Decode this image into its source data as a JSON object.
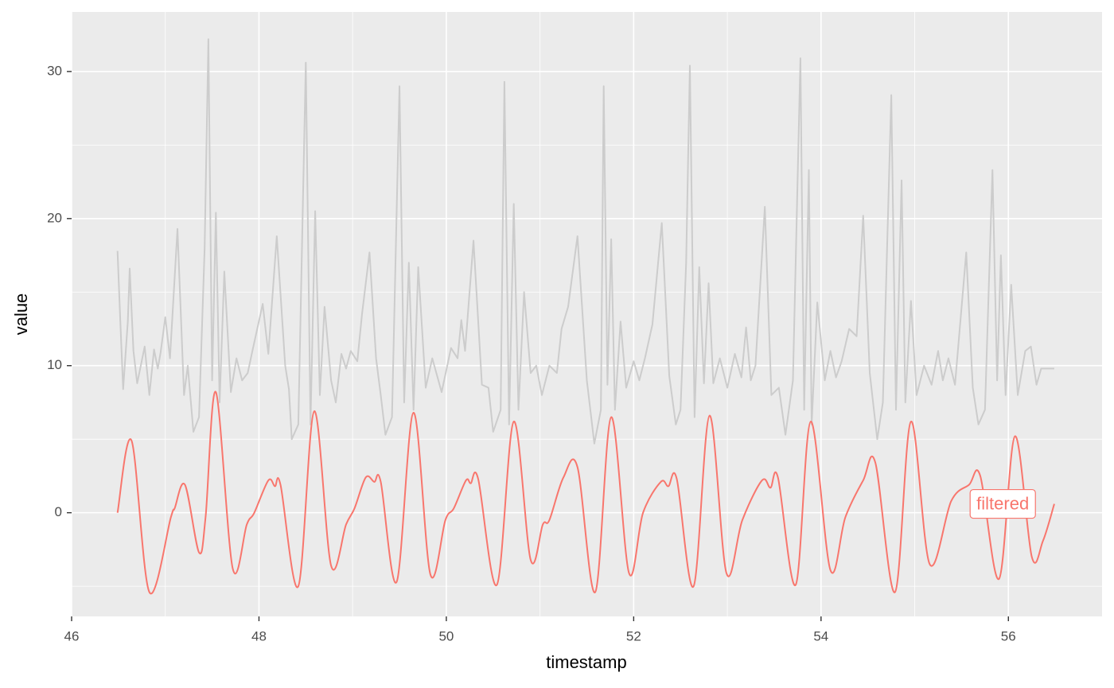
{
  "chart_data": {
    "type": "line",
    "x_label": "timestamp",
    "y_label": "value",
    "xlim": [
      46,
      57
    ],
    "ylim": [
      -7.05,
      34.05
    ],
    "xticks": [
      46,
      48,
      50,
      52,
      54,
      56
    ],
    "yticks": [
      0,
      10,
      20,
      30
    ],
    "x_minor_grid": [
      47,
      49,
      51,
      53,
      55
    ],
    "y_minor_grid": [
      -5,
      5,
      15,
      25
    ],
    "grid": true,
    "series": [
      {
        "color": "#cccccc",
        "x": [
          46.49,
          46.52,
          46.55,
          46.6,
          46.62,
          46.66,
          46.7,
          46.78,
          46.83,
          46.88,
          46.92,
          46.95,
          47.0,
          47.05,
          47.13,
          47.2,
          47.24,
          47.3,
          47.36,
          47.42,
          47.46,
          47.5,
          47.54,
          47.58,
          47.63,
          47.7,
          47.76,
          47.82,
          47.88,
          47.93,
          48.04,
          48.1,
          48.19,
          48.28,
          48.32,
          48.35,
          48.42,
          48.5,
          48.55,
          48.6,
          48.65,
          48.7,
          48.77,
          48.82,
          48.88,
          48.93,
          48.98,
          49.05,
          49.1,
          49.18,
          49.25,
          49.3,
          49.35,
          49.42,
          49.5,
          49.55,
          49.6,
          49.65,
          49.7,
          49.78,
          49.85,
          49.95,
          50.05,
          50.12,
          50.16,
          50.2,
          50.29,
          50.38,
          50.45,
          50.5,
          50.58,
          50.62,
          50.67,
          50.72,
          50.77,
          50.83,
          50.9,
          50.96,
          51.02,
          51.1,
          51.18,
          51.23,
          51.3,
          51.4,
          51.5,
          51.58,
          51.65,
          51.68,
          51.72,
          51.76,
          51.8,
          51.86,
          51.92,
          52.0,
          52.06,
          52.12,
          52.2,
          52.3,
          52.38,
          52.45,
          52.5,
          52.56,
          52.6,
          52.65,
          52.7,
          52.75,
          52.8,
          52.85,
          52.92,
          53.0,
          53.08,
          53.15,
          53.2,
          53.25,
          53.3,
          53.4,
          53.47,
          53.55,
          53.62,
          53.7,
          53.78,
          53.82,
          53.87,
          53.9,
          53.96,
          54.04,
          54.1,
          54.16,
          54.22,
          54.3,
          54.38,
          54.45,
          54.52,
          54.6,
          54.66,
          54.75,
          54.8,
          54.86,
          54.9,
          54.96,
          55.02,
          55.1,
          55.18,
          55.25,
          55.3,
          55.36,
          55.43,
          55.55,
          55.62,
          55.68,
          55.75,
          55.83,
          55.88,
          55.92,
          55.97,
          56.03,
          56.1,
          56.18,
          56.24,
          56.3,
          56.35,
          56.49
        ],
        "values": [
          17.8,
          13,
          8.4,
          13,
          16.6,
          11,
          8.8,
          11.3,
          8,
          11.1,
          9.8,
          10.9,
          13.3,
          10.5,
          19.3,
          8,
          10,
          5.5,
          6.5,
          18,
          32.2,
          9,
          20.4,
          7.5,
          16.4,
          8.2,
          10.5,
          9,
          9.5,
          11,
          14.2,
          10.8,
          18.8,
          10,
          8.4,
          5,
          6,
          30.6,
          6,
          20.5,
          8,
          14,
          9,
          7.5,
          10.8,
          9.8,
          11,
          10.3,
          13.5,
          17.7,
          10.5,
          8,
          5.3,
          6.5,
          29,
          7.5,
          17,
          7,
          16.7,
          8.5,
          10.5,
          8.2,
          11.2,
          10.5,
          13.1,
          11,
          18.5,
          8.7,
          8.5,
          5.5,
          7,
          29.3,
          6,
          21,
          7,
          15,
          9.5,
          10,
          8,
          10,
          9.5,
          12.5,
          14,
          18.8,
          9,
          4.7,
          7,
          29,
          8.7,
          18.6,
          7,
          13,
          8.5,
          10.3,
          9,
          10.5,
          12.8,
          19.7,
          9.3,
          6,
          7,
          17,
          30.4,
          6.5,
          16.7,
          8.8,
          15.6,
          8.8,
          10.5,
          8.5,
          10.8,
          9.2,
          12.6,
          9,
          10,
          20.8,
          8,
          8.5,
          5.3,
          9,
          30.9,
          7,
          23.3,
          6,
          14.3,
          9,
          11,
          9.2,
          10.3,
          12.5,
          12,
          20.2,
          9.5,
          5,
          7.5,
          28.4,
          7,
          22.6,
          7.5,
          14.4,
          8,
          10,
          8.7,
          11,
          9,
          10.5,
          8.7,
          17.7,
          8.5,
          6,
          7,
          23.3,
          9,
          17.5,
          8,
          15.5,
          8,
          11,
          11.3,
          8.7,
          9.8,
          9.8
        ]
      },
      {
        "name": "filtered",
        "color": "#f8766d",
        "label_at": [
          55.94,
          0.6
        ],
        "x": [
          46.49,
          46.64,
          46.83,
          47.06,
          47.1,
          47.21,
          47.36,
          47.43,
          47.54,
          47.72,
          47.87,
          47.95,
          48.1,
          48.17,
          48.23,
          48.42,
          48.59,
          48.77,
          48.93,
          49.02,
          49.14,
          49.23,
          49.3,
          49.47,
          49.65,
          49.83,
          49.99,
          50.08,
          50.21,
          50.26,
          50.34,
          50.54,
          50.72,
          50.9,
          51.03,
          51.1,
          51.25,
          51.4,
          51.59,
          51.76,
          51.95,
          52.1,
          52.29,
          52.37,
          52.46,
          52.64,
          52.81,
          52.99,
          53.16,
          53.37,
          53.46,
          53.54,
          53.73,
          53.89,
          54.1,
          54.26,
          54.45,
          54.58,
          54.79,
          54.96,
          55.16,
          55.39,
          55.58,
          55.7,
          55.9,
          56.07,
          56.25,
          56.37,
          56.49
        ],
        "values": [
          0,
          4.9,
          -5.4,
          -0.3,
          0.3,
          1.9,
          -2.7,
          -0.3,
          8.2,
          -3.8,
          -0.8,
          0,
          2.2,
          1.8,
          1.9,
          -5,
          6.9,
          -3.6,
          -0.8,
          0.3,
          2.4,
          2.1,
          2.1,
          -4.7,
          6.8,
          -4.2,
          -0.5,
          0.3,
          2.2,
          2,
          2.3,
          -4.9,
          6.2,
          -3.2,
          -0.8,
          -0.5,
          2.4,
          3.1,
          -5.4,
          6.5,
          -4.1,
          0,
          2.1,
          1.8,
          2.3,
          -5,
          6.6,
          -4.1,
          -0.5,
          2.2,
          1.7,
          2.4,
          -4.9,
          6.2,
          -3.9,
          -0.3,
          2.2,
          3.4,
          -5.4,
          6.2,
          -3.5,
          0.8,
          1.9,
          2.5,
          -4.5,
          5.2,
          -3,
          -1.9,
          0.6
        ]
      }
    ]
  }
}
